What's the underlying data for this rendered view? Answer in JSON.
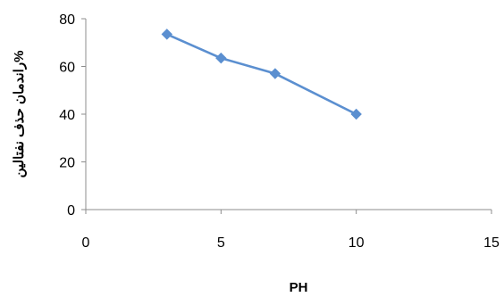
{
  "chart_data": {
    "type": "line",
    "xlabel": "PH",
    "ylabel": "راندمان حذف نفتالین%",
    "xlim": [
      0,
      15
    ],
    "ylim": [
      0,
      80
    ],
    "xticks": [
      0,
      5,
      10,
      15
    ],
    "yticks": [
      0,
      20,
      40,
      60,
      80
    ],
    "grid": false,
    "series": [
      {
        "x": [
          3,
          5,
          7,
          10
        ],
        "y": [
          73.5,
          63.5,
          57,
          40
        ],
        "color": "#5B8FD0",
        "marker": "diamond"
      }
    ]
  }
}
